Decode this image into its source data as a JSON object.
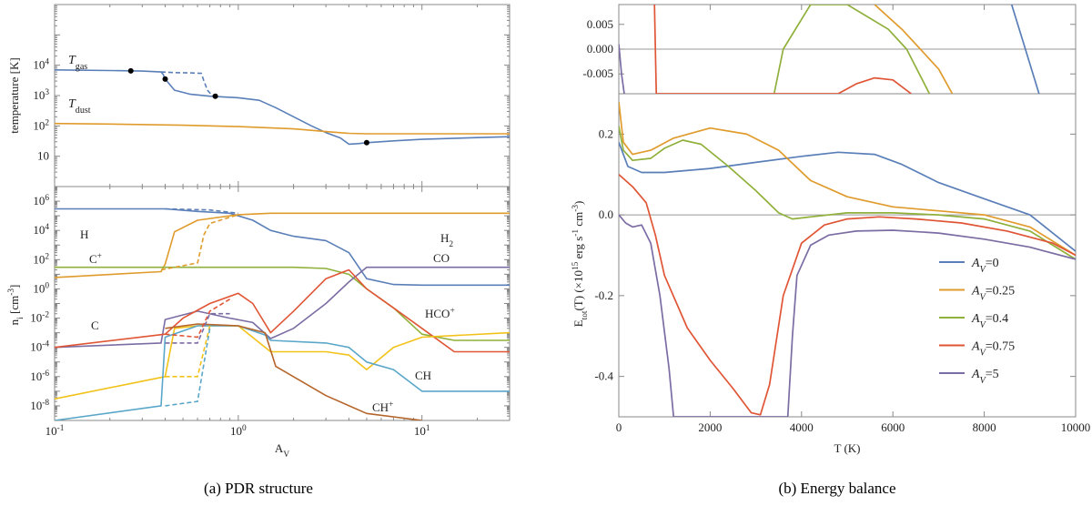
{
  "captions": {
    "a": "(a) PDR structure",
    "b": "(b) Energy balance"
  },
  "colors": {
    "blue": "#5a7fb8",
    "orange": "#e09b2d",
    "green": "#8fb03a",
    "red": "#e05535",
    "purple": "#7b6ca3",
    "yellow": "#f2c219",
    "lightblue": "#5aa7c9",
    "brown": "#b5652a",
    "axis": "#888888"
  },
  "chart_data": [
    {
      "type": "line",
      "panel": "a-top",
      "ylabel": "temperature [K]",
      "xscale": "log",
      "yscale": "log",
      "xlim": [
        0.1,
        30
      ],
      "ylim": [
        1,
        1000000
      ],
      "x_ticks": [
        "10^-1",
        "10^0",
        "10^1"
      ],
      "y_ticks": [
        "10",
        "10^2",
        "10^3",
        "10^4"
      ],
      "series": [
        {
          "name": "T_gas",
          "color": "#5a7fb8",
          "x": [
            0.1,
            0.2,
            0.3,
            0.38,
            0.39,
            0.4,
            0.45,
            0.55,
            0.7,
            1.0,
            1.3,
            1.6,
            2.0,
            2.5,
            3.0,
            3.6,
            4.0,
            4.5,
            5,
            7,
            10,
            20,
            30
          ],
          "y": [
            7000,
            6700,
            6400,
            6000,
            5000,
            3500,
            1500,
            1100,
            950,
            850,
            700,
            400,
            200,
            100,
            60,
            40,
            25,
            26,
            28,
            32,
            36,
            41,
            44
          ]
        },
        {
          "name": "T_gas (dashed)",
          "color": "#5a7fb8",
          "dashed": true,
          "x": [
            0.38,
            0.45,
            0.55,
            0.63,
            0.65,
            0.68,
            0.72,
            0.78
          ],
          "y": [
            6000,
            5700,
            5600,
            5400,
            3000,
            1500,
            1000,
            950
          ]
        },
        {
          "name": "T_dust",
          "color": "#e09b2d",
          "x": [
            0.1,
            0.2,
            0.5,
            1,
            2,
            3,
            4,
            5,
            10,
            30
          ],
          "y": [
            120,
            115,
            105,
            95,
            80,
            65,
            57,
            55,
            55,
            55
          ]
        }
      ],
      "markers": [
        {
          "x": 0.26,
          "y": 6500
        },
        {
          "x": 0.4,
          "y": 3500
        },
        {
          "x": 0.75,
          "y": 950
        },
        {
          "x": 5.0,
          "y": 28
        }
      ],
      "annotations": [
        "T_gas",
        "T_dust"
      ]
    },
    {
      "type": "line",
      "panel": "a-bottom",
      "xlabel": "A_V",
      "ylabel": "n_i [cm^-3]",
      "xscale": "log",
      "yscale": "log",
      "xlim": [
        0.1,
        30
      ],
      "ylim": [
        1e-09,
        10000000.0
      ],
      "x_ticks": [
        "10^-1",
        "10^0",
        "10^1"
      ],
      "y_ticks": [
        "10^-8",
        "10^-6",
        "10^-4",
        "10^-2",
        "10^0",
        "10^2",
        "10^4",
        "10^6"
      ],
      "series": [
        {
          "name": "H",
          "color": "#5a7fb8",
          "x": [
            0.1,
            0.4,
            0.6,
            0.9,
            1.2,
            1.5,
            2,
            3,
            4,
            5,
            7,
            10,
            30
          ],
          "y": [
            300000,
            300000,
            200000,
            150000,
            50000,
            10000,
            4000,
            2000,
            300,
            5,
            2,
            1.8,
            1.8
          ]
        },
        {
          "name": "H2",
          "color": "#e09b2d",
          "x": [
            0.1,
            0.38,
            0.4,
            0.45,
            0.6,
            1,
            1.5,
            2,
            30
          ],
          "y": [
            6,
            15,
            50,
            8000,
            50000,
            120000,
            150000,
            150000,
            150000
          ]
        },
        {
          "name": "C+",
          "color": "#8fb03a",
          "x": [
            0.1,
            1,
            2,
            3,
            4,
            5,
            7,
            10,
            15,
            30
          ],
          "y": [
            30,
            30,
            30,
            25,
            10,
            1,
            0.05,
            0.0008,
            0.0003,
            0.0003
          ]
        },
        {
          "name": "CO",
          "color": "#7b6ca3",
          "x": [
            0.1,
            0.38,
            0.4,
            0.6,
            0.9,
            1.2,
            1.5,
            2,
            3,
            4,
            5,
            30
          ],
          "y": [
            0.0001,
            0.0002,
            0.008,
            0.03,
            0.01,
            0.005,
            0.0004,
            0.002,
            0.1,
            3,
            30,
            30
          ]
        },
        {
          "name": "C",
          "color": "#e05535",
          "x": [
            0.1,
            0.4,
            0.5,
            0.7,
            1.0,
            1.2,
            1.5,
            2,
            3,
            4,
            5,
            7,
            10,
            15,
            30
          ],
          "y": [
            0.0001,
            0.0008,
            0.01,
            0.1,
            0.5,
            0.1,
            0.001,
            0.03,
            5,
            20,
            1,
            0.05,
            0.002,
            5e-05,
            5e-05
          ]
        },
        {
          "name": "HCO+",
          "color": "#f2c219",
          "x": [
            0.1,
            0.4,
            0.45,
            0.6,
            1,
            1.5,
            2,
            3,
            4,
            5,
            7,
            10,
            30
          ],
          "y": [
            3e-08,
            1e-06,
            0.002,
            0.003,
            0.003,
            5e-05,
            5e-05,
            5e-05,
            3e-05,
            3e-06,
            0.0001,
            0.0005,
            0.001
          ]
        },
        {
          "name": "CH",
          "color": "#5aa7c9",
          "x": [
            0.1,
            0.38,
            0.4,
            0.6,
            1,
            1.4,
            1.5,
            3,
            4,
            5,
            7,
            10,
            30
          ],
          "y": [
            1e-09,
            1e-08,
            0.0005,
            0.003,
            0.003,
            0.0007,
            0.0003,
            0.0002,
            0.0001,
            1e-05,
            3e-06,
            1e-07,
            1e-07
          ]
        },
        {
          "name": "CH+",
          "color": "#b5652a",
          "x": [
            0.4,
            0.6,
            1,
            1.4,
            1.6,
            3,
            5,
            10
          ],
          "y": [
            0.002,
            0.004,
            0.003,
            0.001,
            5e-06,
            5e-08,
            3e-09,
            1e-09
          ]
        },
        {
          "name": "H (dashed)",
          "color": "#5a7fb8",
          "dashed": true,
          "x": [
            0.4,
            0.7,
            1.0
          ],
          "y": [
            300000,
            250000,
            150000
          ]
        },
        {
          "name": "H2 (dashed)",
          "color": "#e09b2d",
          "dashed": true,
          "x": [
            0.38,
            0.6,
            0.65,
            0.7,
            1.0
          ],
          "y": [
            20,
            60,
            5000,
            30000,
            120000
          ]
        },
        {
          "name": "C (dashed)",
          "color": "#e05535",
          "dashed": true,
          "x": [
            0.4,
            0.6,
            0.7,
            0.9
          ],
          "y": [
            0.0008,
            0.0005,
            0.03,
            0.2
          ]
        },
        {
          "name": "CO (dashed)",
          "color": "#7b6ca3",
          "dashed": true,
          "x": [
            0.4,
            0.6,
            0.7,
            0.9
          ],
          "y": [
            0.0002,
            0.0002,
            0.02,
            0.02
          ]
        },
        {
          "name": "HCO+ (dashed)",
          "color": "#f2c219",
          "dashed": true,
          "x": [
            0.4,
            0.6,
            0.7
          ],
          "y": [
            1e-06,
            1e-06,
            0.003
          ]
        },
        {
          "name": "CH (dashed)",
          "color": "#5aa7c9",
          "dashed": true,
          "x": [
            0.4,
            0.6,
            0.7
          ],
          "y": [
            1e-08,
            2e-08,
            0.002
          ]
        }
      ],
      "annotations": [
        "H",
        "C+",
        "C",
        "H2",
        "CO",
        "HCO+",
        "CH",
        "CH+"
      ]
    },
    {
      "type": "line",
      "panel": "b-top",
      "xlim": [
        0,
        10000
      ],
      "ylim": [
        -0.009,
        0.009
      ],
      "y_ticks": [
        "0.005",
        "0.000",
        "-0.005"
      ],
      "series": [
        {
          "name": "A_V=0",
          "color": "#5a7fb8",
          "x": [
            8600,
            8900,
            9200
          ],
          "y": [
            0.009,
            0.0,
            -0.009
          ]
        },
        {
          "name": "A_V=0.25",
          "color": "#e09b2d",
          "x": [
            5600,
            6200,
            7000,
            7300
          ],
          "y": [
            0.009,
            0.004,
            -0.004,
            -0.009
          ]
        },
        {
          "name": "A_V=0.4",
          "color": "#8fb03a",
          "x": [
            3400,
            3600,
            4200,
            5000,
            5900,
            6300,
            6800
          ],
          "y": [
            -0.009,
            0.0,
            0.009,
            0.009,
            0.004,
            0.0,
            -0.009
          ]
        },
        {
          "name": "A_V=0.75",
          "color": "#e05535",
          "x": [
            780,
            820,
            4800,
            5200,
            5600,
            6000,
            6400
          ],
          "y": [
            0.009,
            -0.009,
            -0.009,
            -0.007,
            -0.0058,
            -0.0062,
            -0.009
          ]
        },
        {
          "name": "A_V=5",
          "color": "#7b6ca3",
          "x": [
            0,
            60,
            120
          ],
          "y": [
            0.001,
            -0.005,
            -0.009
          ]
        }
      ]
    },
    {
      "type": "line",
      "panel": "b-bottom",
      "xlabel": "T (K)",
      "ylabel": "E_tot(T) (×10^15 erg s^-1 cm^-3)",
      "xlim": [
        0,
        10000
      ],
      "ylim": [
        -0.5,
        0.3
      ],
      "x_ticks": [
        "0",
        "2000",
        "4000",
        "6000",
        "8000",
        "10000"
      ],
      "y_ticks": [
        "0.2",
        "0.0",
        "-0.2",
        "-0.4"
      ],
      "legend_position": "right",
      "series": [
        {
          "name": "A_V=0",
          "color": "#5a7fb8",
          "x": [
            0,
            200,
            500,
            1000,
            2000,
            3000,
            4000,
            4800,
            5600,
            6200,
            7000,
            8000,
            9000,
            10000
          ],
          "y": [
            0.18,
            0.12,
            0.105,
            0.105,
            0.115,
            0.13,
            0.145,
            0.155,
            0.15,
            0.125,
            0.08,
            0.04,
            0.0,
            -0.09
          ]
        },
        {
          "name": "A_V=0.25",
          "color": "#e09b2d",
          "x": [
            0,
            100,
            300,
            700,
            1200,
            2000,
            2800,
            3500,
            4200,
            5000,
            6000,
            7000,
            8000,
            9000,
            10000
          ],
          "y": [
            0.28,
            0.18,
            0.15,
            0.16,
            0.19,
            0.215,
            0.2,
            0.16,
            0.085,
            0.045,
            0.02,
            0.01,
            0.0,
            -0.03,
            -0.1
          ]
        },
        {
          "name": "A_V=0.4",
          "color": "#8fb03a",
          "x": [
            0,
            100,
            300,
            700,
            1000,
            1400,
            1800,
            2400,
            3000,
            3500,
            3800,
            4200,
            5000,
            6000,
            7000,
            8000,
            9000,
            10000
          ],
          "y": [
            0.22,
            0.16,
            0.135,
            0.14,
            0.165,
            0.185,
            0.175,
            0.12,
            0.06,
            0.005,
            -0.01,
            -0.005,
            0.005,
            0.005,
            0.0,
            -0.01,
            -0.04,
            -0.11
          ]
        },
        {
          "name": "A_V=0.75",
          "color": "#e05535",
          "x": [
            0,
            300,
            600,
            800,
            1000,
            1500,
            2000,
            2500,
            2900,
            3100,
            3300,
            3600,
            4000,
            4500,
            5000,
            5700,
            6500,
            7500,
            8500,
            9500,
            10000
          ],
          "y": [
            0.1,
            0.07,
            0.03,
            -0.05,
            -0.15,
            -0.28,
            -0.36,
            -0.43,
            -0.49,
            -0.495,
            -0.42,
            -0.2,
            -0.07,
            -0.025,
            -0.01,
            -0.005,
            -0.01,
            -0.02,
            -0.04,
            -0.07,
            -0.1
          ]
        },
        {
          "name": "A_V=5",
          "color": "#7b6ca3",
          "x": [
            0,
            150,
            300,
            500,
            700,
            900,
            1100,
            1200,
            3700,
            3800,
            3900,
            4200,
            4600,
            5200,
            6000,
            7000,
            8000,
            9000,
            10000
          ],
          "y": [
            0.0,
            -0.02,
            -0.03,
            -0.025,
            -0.07,
            -0.2,
            -0.38,
            -0.5,
            -0.5,
            -0.3,
            -0.15,
            -0.075,
            -0.05,
            -0.04,
            -0.038,
            -0.045,
            -0.06,
            -0.08,
            -0.11
          ]
        }
      ]
    }
  ]
}
